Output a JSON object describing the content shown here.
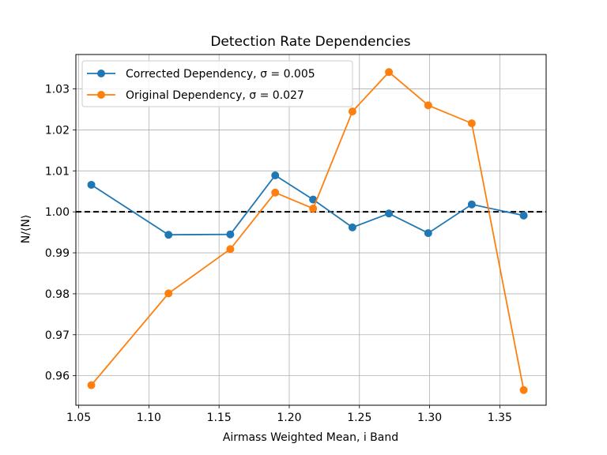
{
  "chart_data": {
    "type": "line",
    "title": "Detection Rate Dependencies",
    "xlabel": "Airmass Weighted Mean, i Band",
    "ylabel": "N/⟨N⟩",
    "xlim": [
      1.048,
      1.383
    ],
    "ylim": [
      0.9528,
      1.0384
    ],
    "xticks": [
      "1.05",
      "1.10",
      "1.15",
      "1.20",
      "1.25",
      "1.30",
      "1.35"
    ],
    "yticks": [
      "0.96",
      "0.97",
      "0.98",
      "0.99",
      "1.00",
      "1.01",
      "1.02",
      "1.03"
    ],
    "grid": true,
    "legend_position": "upper-left",
    "reference_line": {
      "y": 1.0,
      "style": "dashed",
      "color": "#000000"
    },
    "x": [
      1.059,
      1.114,
      1.158,
      1.19,
      1.217,
      1.245,
      1.271,
      1.299,
      1.33,
      1.367
    ],
    "series": [
      {
        "name": "Corrected Dependency, σ = 0.005",
        "color": "#1f77b4",
        "values": [
          1.0066,
          0.9944,
          0.9945,
          1.0089,
          1.003,
          0.9962,
          0.9996,
          0.9948,
          1.0018,
          0.9991
        ]
      },
      {
        "name": "Original Dependency, σ = 0.027",
        "color": "#ff7f0e",
        "values": [
          0.9577,
          0.9801,
          0.9909,
          1.0047,
          1.0008,
          1.0245,
          1.0341,
          1.026,
          1.0216,
          0.9565
        ]
      }
    ]
  }
}
